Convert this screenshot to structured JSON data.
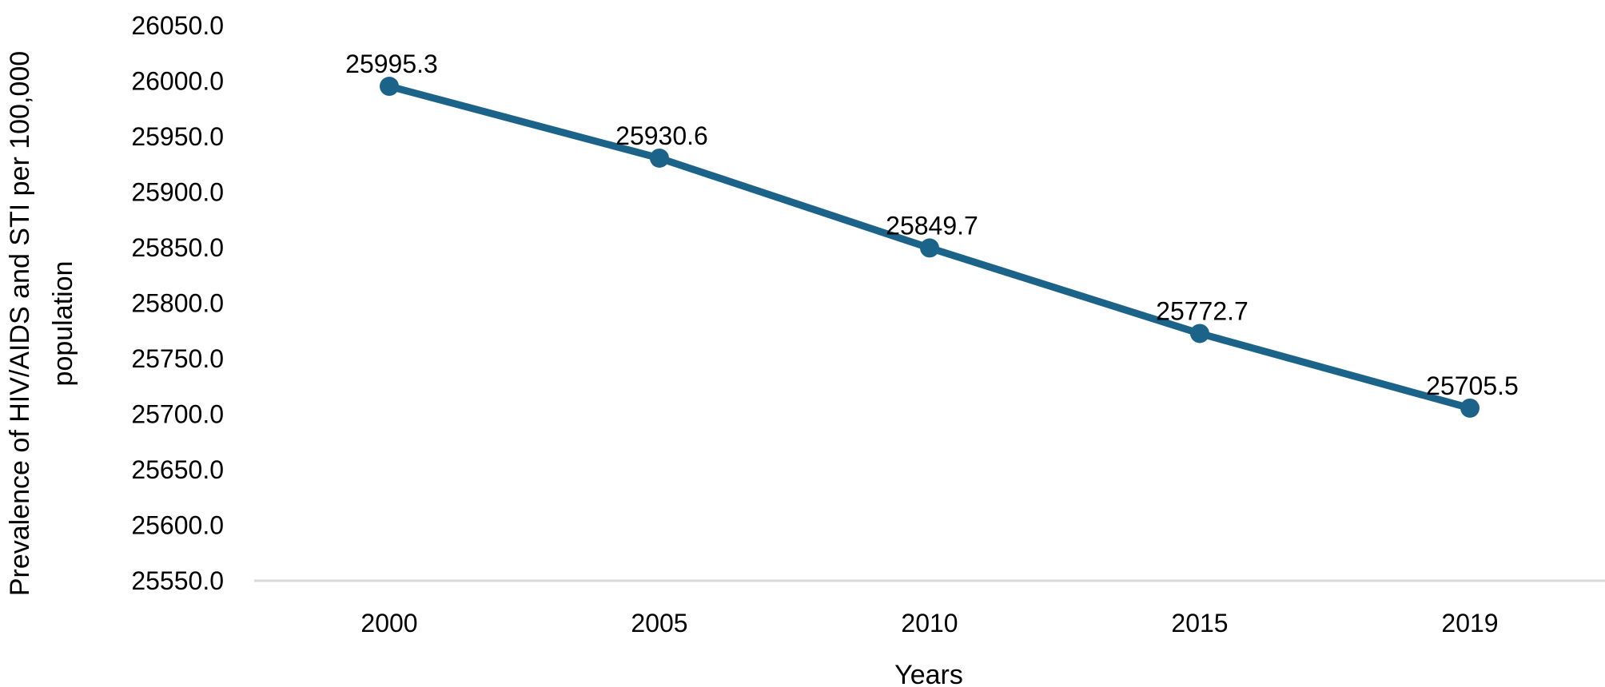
{
  "chart_data": {
    "type": "line",
    "categories": [
      "2000",
      "2005",
      "2010",
      "2015",
      "2019"
    ],
    "series": [
      {
        "values": [
          25995.3,
          25930.6,
          25849.7,
          25772.7,
          25705.5
        ]
      }
    ],
    "data_labels": [
      "25995.3",
      "25930.6",
      "25849.7",
      "25772.7",
      "25705.5"
    ],
    "xlabel": "Years",
    "ylabel": "Prevalence of HIV/AIDS and STI per 100,000 population",
    "ylabel_lines": [
      "Prevalence of HIV/AIDS and STI per 100,000",
      "population"
    ],
    "ylim": [
      25550,
      26050
    ],
    "ystep": 50,
    "y_tick_labels": [
      "25550.0",
      "25600.0",
      "25650.0",
      "25700.0",
      "25750.0",
      "25800.0",
      "25850.0",
      "25900.0",
      "25950.0",
      "26000.0",
      "26050.0"
    ],
    "grid": false,
    "legend": "none",
    "line_color": "#1b6389",
    "axis_color": "#d9d9d9"
  }
}
